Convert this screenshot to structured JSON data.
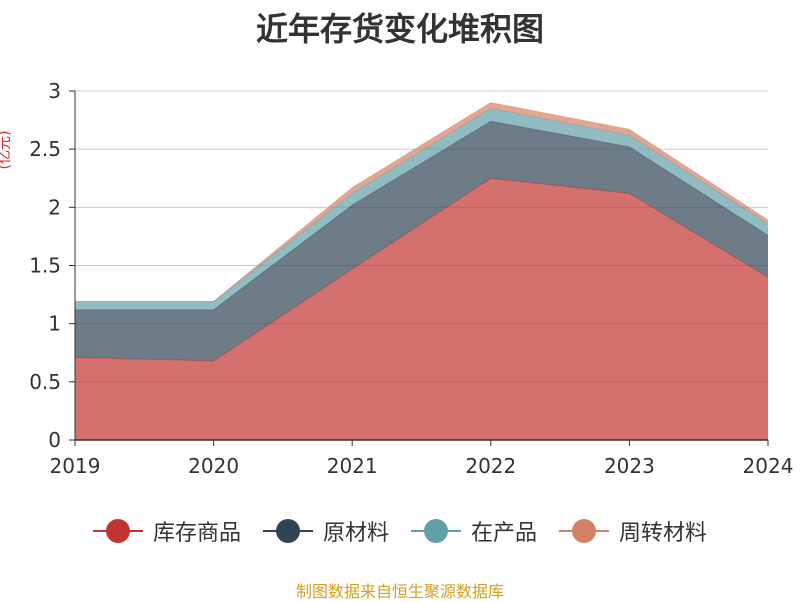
{
  "chart_data": {
    "type": "area",
    "stacked": true,
    "title": "近年存货变化堆积图",
    "ylabel": "(亿元)",
    "xlabel": "",
    "categories": [
      "2019",
      "2020",
      "2021",
      "2022",
      "2023",
      "2024"
    ],
    "ylim": [
      0,
      3
    ],
    "yticks": [
      "0",
      "0.5",
      "1",
      "1.5",
      "2",
      "2.5",
      "3"
    ],
    "grid": true,
    "legend_position": "bottom",
    "series": [
      {
        "name": "库存商品",
        "color": "#c23531",
        "values": [
          0.71,
          0.68,
          1.47,
          2.25,
          2.12,
          1.4
        ]
      },
      {
        "name": "原材料",
        "color": "#2f4554",
        "values": [
          0.41,
          0.44,
          0.55,
          0.49,
          0.4,
          0.36
        ]
      },
      {
        "name": "在产品",
        "color": "#61a0a8",
        "values": [
          0.07,
          0.07,
          0.1,
          0.11,
          0.1,
          0.1
        ]
      },
      {
        "name": "周转材料",
        "color": "#d48265",
        "values": [
          0.0,
          0.0,
          0.05,
          0.05,
          0.05,
          0.03
        ]
      }
    ],
    "source": "制图数据来自恒生聚源数据库"
  }
}
